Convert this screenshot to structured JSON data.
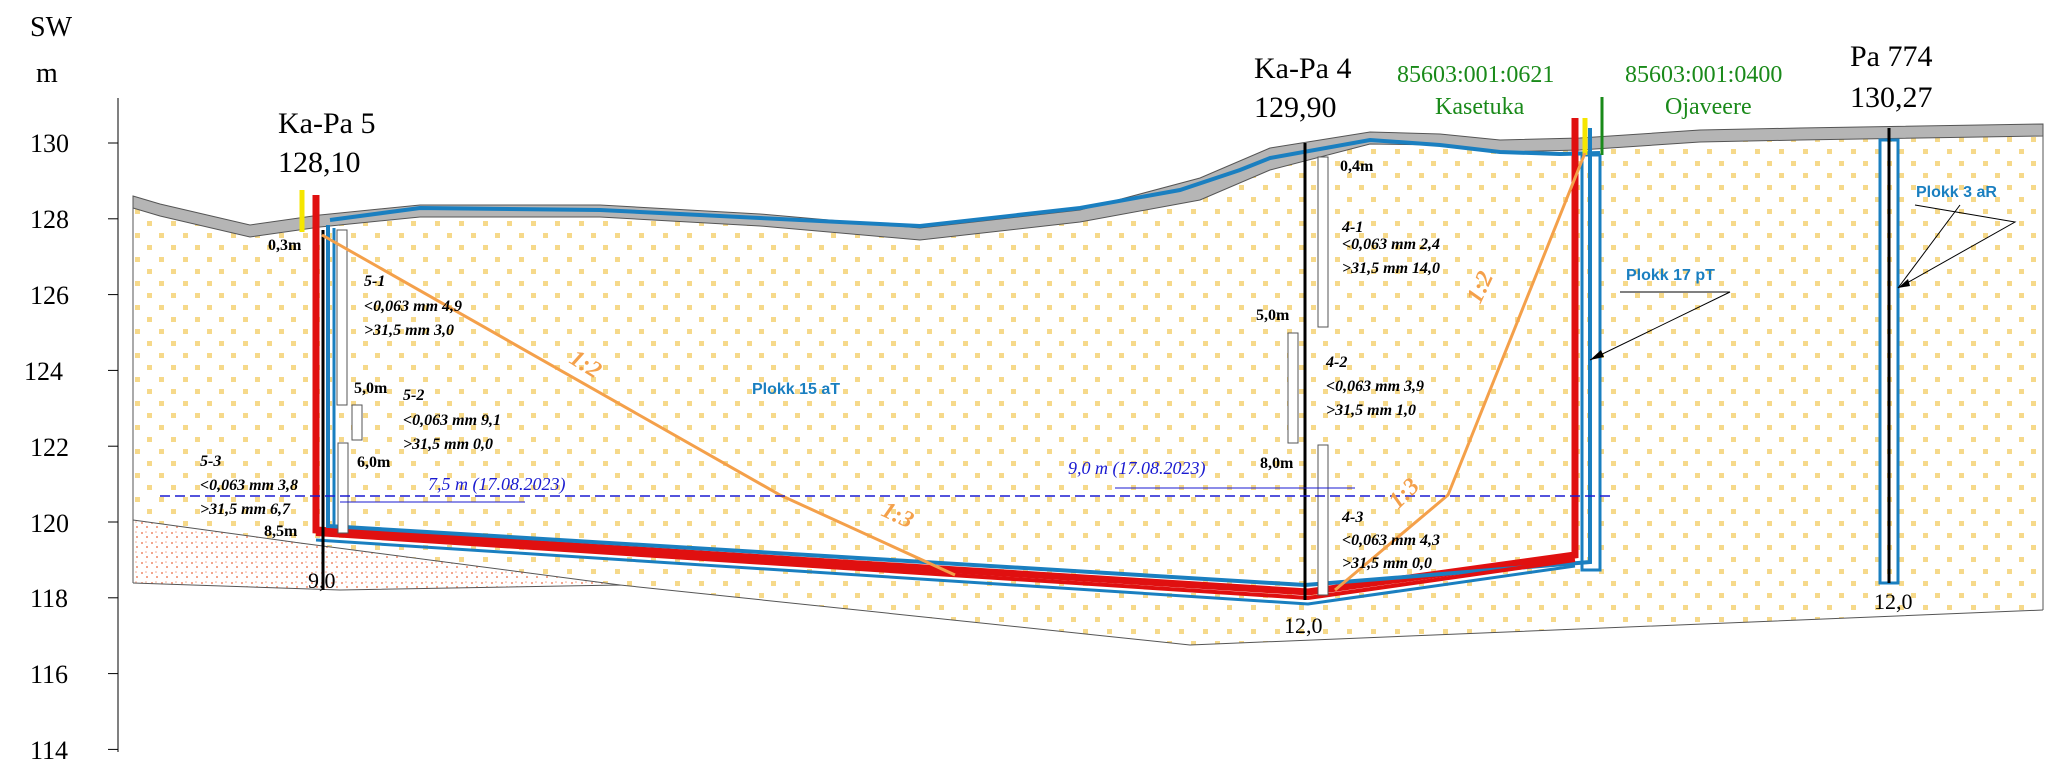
{
  "axis": {
    "label_line1": "SW",
    "label_line2": "m",
    "ticks": [
      "130",
      "128",
      "126",
      "124",
      "122",
      "120",
      "118",
      "116",
      "114"
    ]
  },
  "boreholes": [
    {
      "id": "Ka-Pa 5",
      "elevation": "128,10",
      "depth_label": "9,0"
    },
    {
      "id": "Ka-Pa 4",
      "elevation": "129,90",
      "depth_label": "12,0"
    },
    {
      "id": "Pa 774",
      "elevation": "130,27",
      "depth_label": "12,0"
    }
  ],
  "parcels": [
    {
      "code": "85603:001:0621",
      "name": "Kasetuka"
    },
    {
      "code": "85603:001:0400",
      "name": "Ojaveere"
    }
  ],
  "blocks": {
    "b15": "Plokk 15 aT",
    "b17": "Plokk 17 pT",
    "b3": "Plokk 3 aR"
  },
  "slopes": {
    "left_upper": "1:2",
    "left_lower": "1:3",
    "right_upper": "1:2",
    "right_lower": "1:3"
  },
  "water_levels": {
    "left": "7,5  m (17.08.2023)",
    "right": "9,0  m (17.08.2023)"
  },
  "kapa5": {
    "d_top": "0,3m",
    "d_mid1": "5,0m",
    "d_mid2": "6,0m",
    "d_bot": "8,5m",
    "s1": {
      "id": "5-1",
      "fine": "<0,063 mm 4,9",
      "coarse": ">31,5 mm 3,0"
    },
    "s2": {
      "id": "5-2",
      "fine": "<0,063 mm 9,1",
      "coarse": ">31,5 mm 0,0"
    },
    "s3": {
      "id": "5-3",
      "fine": "<0,063 mm 3,8",
      "coarse": ">31,5 mm 6,7"
    }
  },
  "kapa4": {
    "d_top": "0,4m",
    "d_mid1": "5,0m",
    "d_mid2": "8,0m",
    "s1": {
      "id": "4-1",
      "fine": "<0,063 mm 2,4",
      "coarse": ">31,5 mm 14,0"
    },
    "s2": {
      "id": "4-2",
      "fine": "<0,063 mm 3,9",
      "coarse": ">31,5 mm 1,0"
    },
    "s3": {
      "id": "4-3",
      "fine": "<0,063 mm 4,3",
      "coarse": ">31,5 mm 0,0"
    }
  },
  "colors": {
    "liner_blue": "#1a7fc0",
    "liner_red": "#e01010",
    "slope_orange": "#f4a04a",
    "parcel_green": "#1a8a1a",
    "water_blue": "#1a1ad0"
  }
}
